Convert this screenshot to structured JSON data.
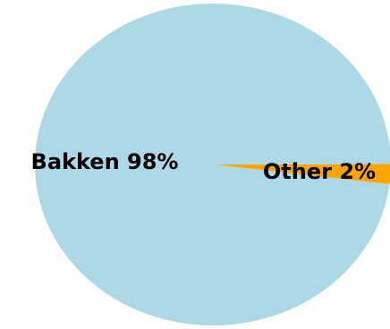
{
  "chart_data": {
    "type": "pie",
    "title": "",
    "slices": [
      {
        "label": "Bakken",
        "value": 98,
        "display": "Bakken 98%",
        "color": "#add8e6"
      },
      {
        "label": "Other",
        "value": 2,
        "display": "Other 2%",
        "color": "#ffa500"
      }
    ],
    "legend": "none"
  }
}
